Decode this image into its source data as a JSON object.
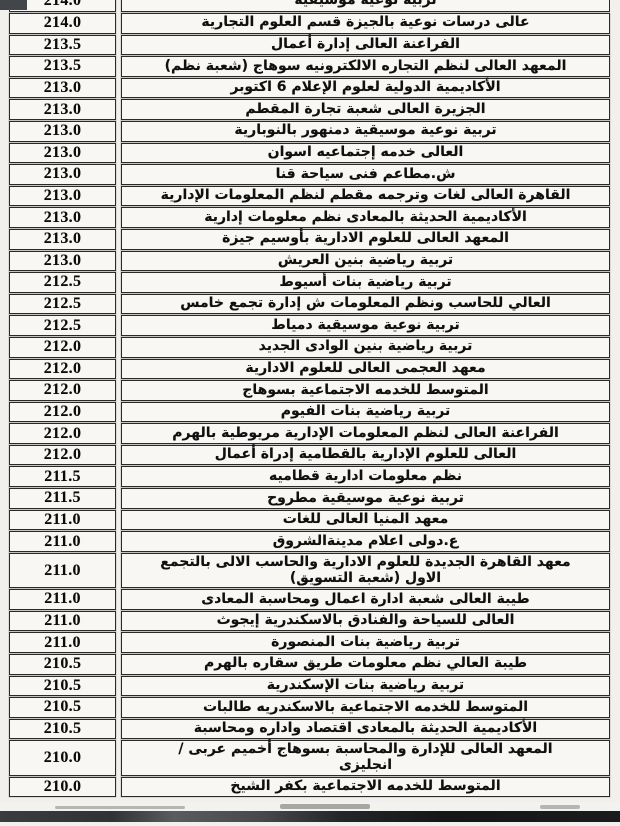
{
  "document": {
    "kind": "scanned-admission-scores-table",
    "columns": {
      "institute": "institute-name",
      "score": "score"
    },
    "partial_top_row": {
      "name": "تربية نوعية موسيقية",
      "score": "214.0"
    },
    "rows": [
      {
        "name": "عالى درسات نوعية بالجيزة قسم العلوم التجارية",
        "score": "214.0"
      },
      {
        "name": "الفراعنة العالى إدارة أعمال",
        "score": "213.5"
      },
      {
        "name": "المعهد العالى لنظم التجاره الالكترونيه سوهاج (شعبة نظم)",
        "score": "213.5"
      },
      {
        "name": "الأكاديمية الدولية لعلوم الإعلام 6 اكتوبر",
        "score": "213.0"
      },
      {
        "name": "الجزيرة العالى شعبة تجارة المقطم",
        "score": "213.0"
      },
      {
        "name": "تربية نوعية موسيقية دمنهور بالنوبارية",
        "score": "213.0"
      },
      {
        "name": "العالى خدمه إجتماعيه اسوان",
        "score": "213.0"
      },
      {
        "name": "ش.مطاعم فنى سياحة قنا",
        "score": "213.0"
      },
      {
        "name": "القاهرة العالى لغات وترجمه مقطم لنظم المعلومات الإدارية",
        "score": "213.0"
      },
      {
        "name": "الأكاديمية الحديثة بالمعادى نظم معلومات إدارية",
        "score": "213.0"
      },
      {
        "name": "المعهد العالى للعلوم الادارية بأوسيم جيزة",
        "score": "213.0"
      },
      {
        "name": "تربية رياضية بنين العريش",
        "score": "213.0"
      },
      {
        "name": "تربية رياضية بنات أسيوط",
        "score": "212.5"
      },
      {
        "name": "العالي للحاسب ونظم المعلومات ش إدارة تجمع خامس",
        "score": "212.5"
      },
      {
        "name": "تربية نوعية موسيقية دمياط",
        "score": "212.5"
      },
      {
        "name": "تربية رياضية بنين الوادى الجديد",
        "score": "212.0"
      },
      {
        "name": "معهد العجمى العالى للعلوم الادارية",
        "score": "212.0"
      },
      {
        "name": "المتوسط للخدمه الاجتماعية بسوهاج",
        "score": "212.0"
      },
      {
        "name": "تربية رياضية بنات الفيوم",
        "score": "212.0"
      },
      {
        "name": "الفراعنة العالى لنظم المعلومات الإدارية مريوطية بالهرم",
        "score": "212.0"
      },
      {
        "name": "العالى للعلوم الإدارية بالقطامية إدراة أعمال",
        "score": "212.0"
      },
      {
        "name": "نظم معلومات ادارية قطاميه",
        "score": "211.5"
      },
      {
        "name": "تربية نوعية موسيقية مطروح",
        "score": "211.5"
      },
      {
        "name": "معهد المنيا العالى للغات",
        "score": "211.0"
      },
      {
        "name": "ع.دولى اعلام مدينةالشروق",
        "score": "211.0"
      },
      {
        "name": "معهد القاهرة الجديدة للعلوم الادارية والحاسب الالى بالتجمع\nالاول (شعبة التسويق)",
        "score": "211.0"
      },
      {
        "name": "طيبة العالى شعبة ادارة اعمال ومحاسبة المعادى",
        "score": "211.0"
      },
      {
        "name": "العالى للسياحة والفنادق بالاسكندرية إيجوث",
        "score": "211.0"
      },
      {
        "name": "تربية رياضية بنات المنصورة",
        "score": "211.0"
      },
      {
        "name": "طيبة العالي نظم معلومات طريق سقاره بالهرم",
        "score": "210.5"
      },
      {
        "name": "تربية رياضية بنات الإسكندرية",
        "score": "210.5"
      },
      {
        "name": "المتوسط للخدمه الاجتماعية بالاسكندريه طالبات",
        "score": "210.5"
      },
      {
        "name": "الأكاديمية الحديثة بالمعادى اقتصاد واداره ومحاسبة",
        "score": "210.5"
      },
      {
        "name": "المعهد العالى للإدارة والمحاسبة بسوهاج أخميم عربى /\nانجليزى",
        "score": "210.0"
      },
      {
        "name": "المتوسط للخدمه الاجتماعية بكفر الشيخ",
        "score": "210.0"
      }
    ]
  },
  "colors": {
    "paper": "#f1f0ed",
    "cell_background": "#f8f7f3",
    "border": "#2a2a2a",
    "text": "#101010",
    "bottom_bar_dark": "#17191b",
    "top_smudge": "#42464a"
  }
}
